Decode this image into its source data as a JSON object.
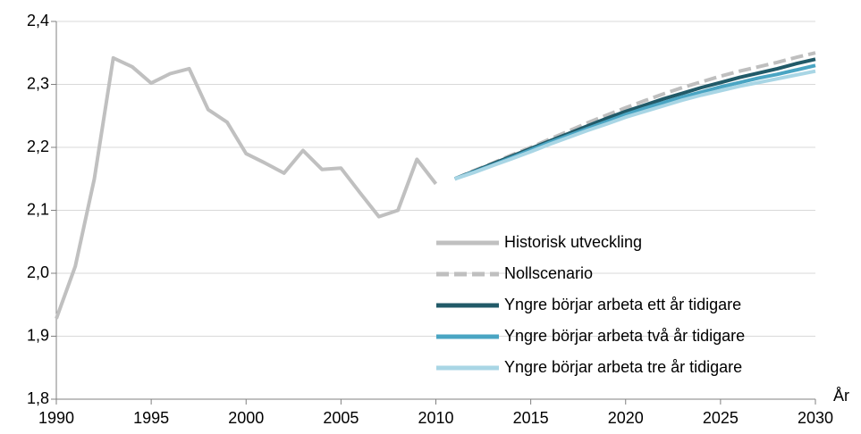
{
  "chart_data": {
    "type": "line",
    "x": [
      1990,
      1991,
      1992,
      1993,
      1994,
      1995,
      1996,
      1997,
      1998,
      1999,
      2000,
      2001,
      2002,
      2003,
      2004,
      2005,
      2006,
      2007,
      2008,
      2009,
      2010,
      2011,
      2012,
      2013,
      2014,
      2015,
      2016,
      2017,
      2018,
      2019,
      2020,
      2021,
      2022,
      2023,
      2024,
      2025,
      2026,
      2027,
      2028,
      2029,
      2030
    ],
    "x_label": "År",
    "series": [
      {
        "name": "Historisk utveckling",
        "color": "#c0c0c0",
        "style": "solid",
        "values": [
          1.928,
          2.011,
          2.15,
          2.342,
          2.328,
          2.302,
          2.317,
          2.325,
          2.26,
          2.24,
          2.19,
          2.175,
          2.159,
          2.195,
          2.165,
          2.167,
          2.128,
          2.09,
          2.1,
          2.181,
          2.142,
          null,
          null,
          null,
          null,
          null,
          null,
          null,
          null,
          null,
          null,
          null,
          null,
          null,
          null,
          null,
          null,
          null,
          null,
          null,
          null
        ]
      },
      {
        "name": "Nollscenario",
        "color": "#bfbfbf",
        "style": "dashed",
        "values": [
          null,
          null,
          null,
          null,
          null,
          null,
          null,
          null,
          null,
          null,
          null,
          null,
          null,
          null,
          null,
          null,
          null,
          null,
          null,
          null,
          null,
          2.15,
          2.163,
          2.175,
          2.188,
          2.2,
          2.213,
          2.226,
          2.239,
          2.251,
          2.263,
          2.274,
          2.285,
          2.295,
          2.304,
          2.313,
          2.321,
          2.328,
          2.335,
          2.343,
          2.35
        ]
      },
      {
        "name": "Yngre börjar arbeta ett år tidigare",
        "color": "#215a68",
        "style": "solid",
        "values": [
          null,
          null,
          null,
          null,
          null,
          null,
          null,
          null,
          null,
          null,
          null,
          null,
          null,
          null,
          null,
          null,
          null,
          null,
          null,
          null,
          null,
          2.15,
          2.162,
          2.174,
          2.186,
          2.198,
          2.21,
          2.222,
          2.234,
          2.246,
          2.257,
          2.267,
          2.277,
          2.286,
          2.295,
          2.303,
          2.311,
          2.318,
          2.325,
          2.333,
          2.34
        ]
      },
      {
        "name": "Yngre börjar arbeta två år tidigare",
        "color": "#4aa5c3",
        "style": "solid",
        "values": [
          null,
          null,
          null,
          null,
          null,
          null,
          null,
          null,
          null,
          null,
          null,
          null,
          null,
          null,
          null,
          null,
          null,
          null,
          null,
          null,
          null,
          2.15,
          2.161,
          2.172,
          2.184,
          2.196,
          2.208,
          2.219,
          2.23,
          2.241,
          2.252,
          2.262,
          2.271,
          2.28,
          2.288,
          2.296,
          2.303,
          2.31,
          2.316,
          2.323,
          2.33
        ]
      },
      {
        "name": "Yngre börjar arbeta tre år tidigare",
        "color": "#a9d6e5",
        "style": "solid",
        "values": [
          null,
          null,
          null,
          null,
          null,
          null,
          null,
          null,
          null,
          null,
          null,
          null,
          null,
          null,
          null,
          null,
          null,
          null,
          null,
          null,
          null,
          2.15,
          2.16,
          2.171,
          2.182,
          2.193,
          2.205,
          2.216,
          2.227,
          2.237,
          2.248,
          2.257,
          2.266,
          2.275,
          2.283,
          2.29,
          2.297,
          2.303,
          2.309,
          2.315,
          2.321
        ]
      }
    ],
    "xlim": [
      1990,
      2030
    ],
    "xticks": [
      1990,
      1995,
      2000,
      2005,
      2010,
      2015,
      2020,
      2025,
      2030
    ],
    "ylim": [
      1.8,
      2.4
    ],
    "yticks": [
      {
        "value": 1.8,
        "label": "1,8"
      },
      {
        "value": 1.9,
        "label": "1,9"
      },
      {
        "value": 2.0,
        "label": "2,0"
      },
      {
        "value": 2.1,
        "label": "2,1"
      },
      {
        "value": 2.2,
        "label": "2,2"
      },
      {
        "value": 2.3,
        "label": "2,3"
      },
      {
        "value": 2.4,
        "label": "2,4"
      }
    ],
    "grid": true,
    "legend": "lower right"
  }
}
